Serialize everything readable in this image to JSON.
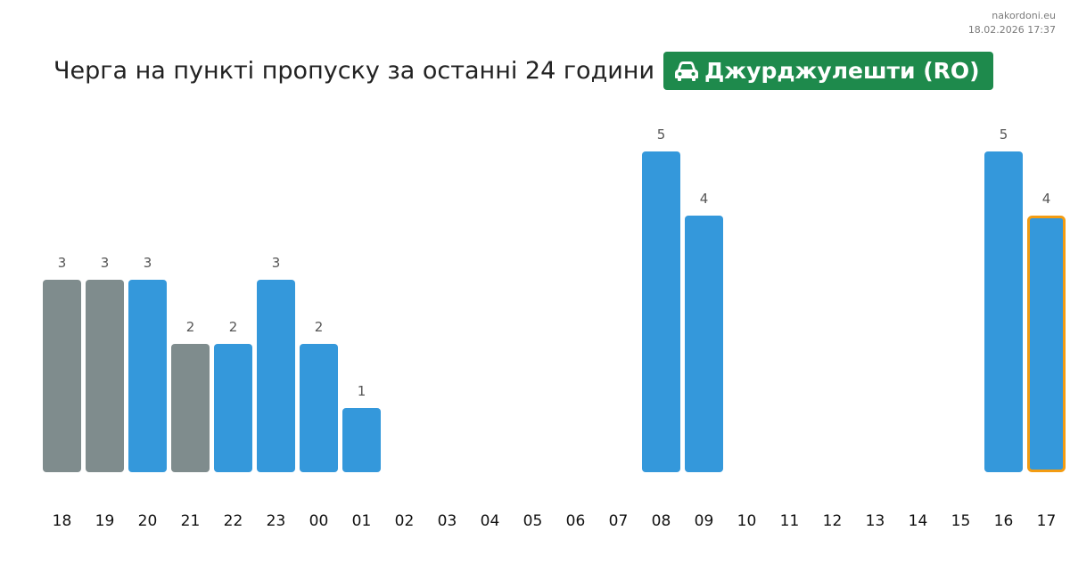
{
  "source": {
    "site": "nakordoni.eu",
    "datetime": "18.02.2026 17:37"
  },
  "header": {
    "title": "Черга на пункті пропуску за останні 24 години",
    "badge_label": "Джурджулешти (RO)",
    "badge_icon": "car-icon",
    "badge_color": "#1e8a4c"
  },
  "colors": {
    "bar_blue": "#3498db",
    "bar_gray": "#7f8c8d",
    "highlight_border": "#f39c12"
  },
  "chart_data": {
    "type": "bar",
    "title": "Черга на пункті пропуску за останні 24 години",
    "xlabel": "",
    "ylabel": "",
    "grid": false,
    "categories": [
      "18",
      "19",
      "20",
      "21",
      "22",
      "23",
      "00",
      "01",
      "02",
      "03",
      "04",
      "05",
      "06",
      "07",
      "08",
      "09",
      "10",
      "11",
      "12",
      "13",
      "14",
      "15",
      "16",
      "17"
    ],
    "values": [
      3,
      3,
      3,
      2,
      2,
      3,
      2,
      1,
      0,
      0,
      0,
      0,
      0,
      0,
      5,
      4,
      0,
      0,
      0,
      0,
      0,
      0,
      5,
      4
    ],
    "bar_colors": [
      "gray",
      "gray",
      "blue",
      "gray",
      "blue",
      "blue",
      "blue",
      "blue",
      "blue",
      "blue",
      "blue",
      "blue",
      "blue",
      "blue",
      "blue",
      "blue",
      "blue",
      "blue",
      "blue",
      "blue",
      "blue",
      "blue",
      "blue",
      "blue"
    ],
    "highlighted_category": "17",
    "ylim": [
      0,
      5
    ]
  }
}
